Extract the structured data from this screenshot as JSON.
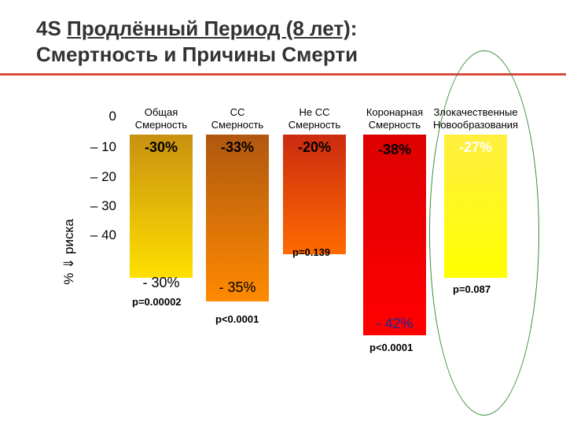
{
  "title": {
    "prefix": "4S ",
    "underlined": "Продлённый Период (8 лет)",
    "suffix": ":",
    "line2": "Смертность и Причины Смерти"
  },
  "colors": {
    "rule": "#d84a3c",
    "oval": "#3a8a3a"
  },
  "chart_data": {
    "type": "bar",
    "ylabel": "% ⇓ риска",
    "yticks": [
      "0",
      "– 10",
      "– 20",
      "– 30",
      "– 40"
    ],
    "ylim": [
      0,
      -42
    ],
    "categories": [
      {
        "line1": "Общая",
        "line2": "Смерность"
      },
      {
        "line1": "СС",
        "line2": "Смерность"
      },
      {
        "line1": "Не СС",
        "line2": "Смерность"
      },
      {
        "line1": "Коронарная",
        "line2": "Смерность"
      },
      {
        "line1": "Злокачественные",
        "line2": "Новообразования"
      }
    ],
    "series": [
      {
        "values": [
          -30,
          -33,
          -20,
          -38,
          -27
        ],
        "labels": [
          "-30%",
          "-33%",
          "-20%",
          "-38%",
          "-27%"
        ]
      },
      {
        "values": [
          -30,
          -35,
          -25,
          -42,
          -30
        ],
        "labels": [
          "- 30%",
          "- 35%",
          "",
          "- 42%",
          ""
        ]
      }
    ],
    "p_values": [
      "p=0.00002",
      "p<0.0001",
      "p=0.139",
      "p<0.0001",
      "p=0.087"
    ],
    "bar_colors": [
      [
        "#c89010",
        "#ffe000"
      ],
      [
        "#b05810",
        "#ff8a00"
      ],
      [
        "#cc2a10",
        "#ff6a00"
      ],
      [
        "#dd0000",
        "#ff0000"
      ],
      [
        "#ffef40",
        "#ffff00"
      ]
    ]
  }
}
